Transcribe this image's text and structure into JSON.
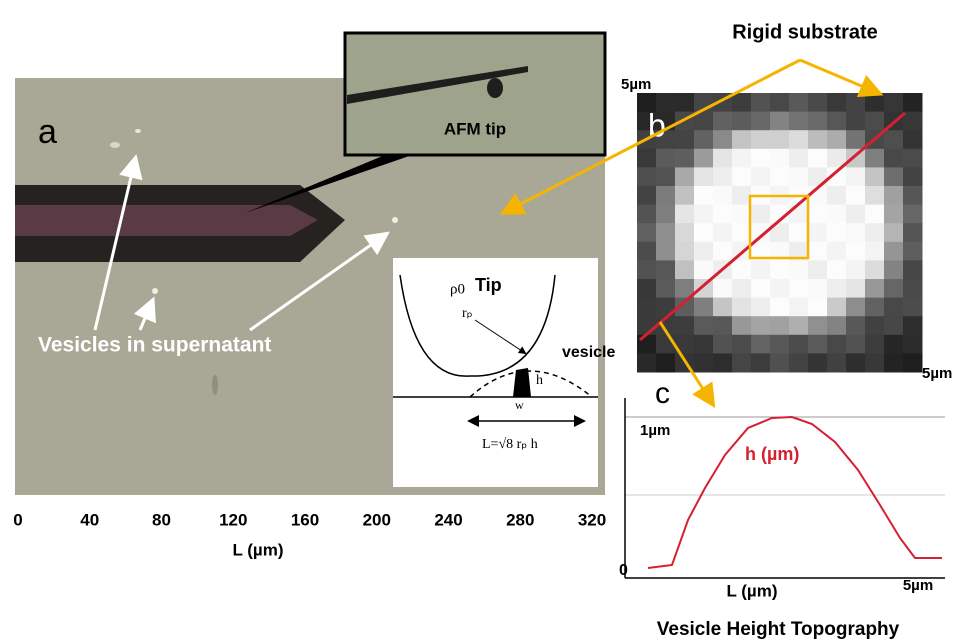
{
  "top_label": "Rigid substrate",
  "panel_a": {
    "label": "a",
    "inset_label": "AFM tip",
    "annotation": "Vesicles in supernatant",
    "x_axis_label": "L (µm)",
    "x_ticks": [
      0,
      40,
      80,
      120,
      160,
      200,
      240,
      280,
      320
    ]
  },
  "diagram": {
    "tip_pressure": "ρ0",
    "tip": "Tip",
    "radius": "rₚ",
    "vesicle": "vesicle",
    "height": "h",
    "width": "w",
    "formula": "L=√8 rₚ h"
  },
  "panel_b": {
    "label": "b",
    "top_scale": "5µm",
    "right_scale": "5µm"
  },
  "panel_c": {
    "label": "c",
    "y_top": "1µm",
    "y_zero": "0",
    "curve_label": "h (µm)",
    "x_axis_label": "L (µm)",
    "x_end": "5µm",
    "caption": "Vesicle Height Topography"
  }
}
